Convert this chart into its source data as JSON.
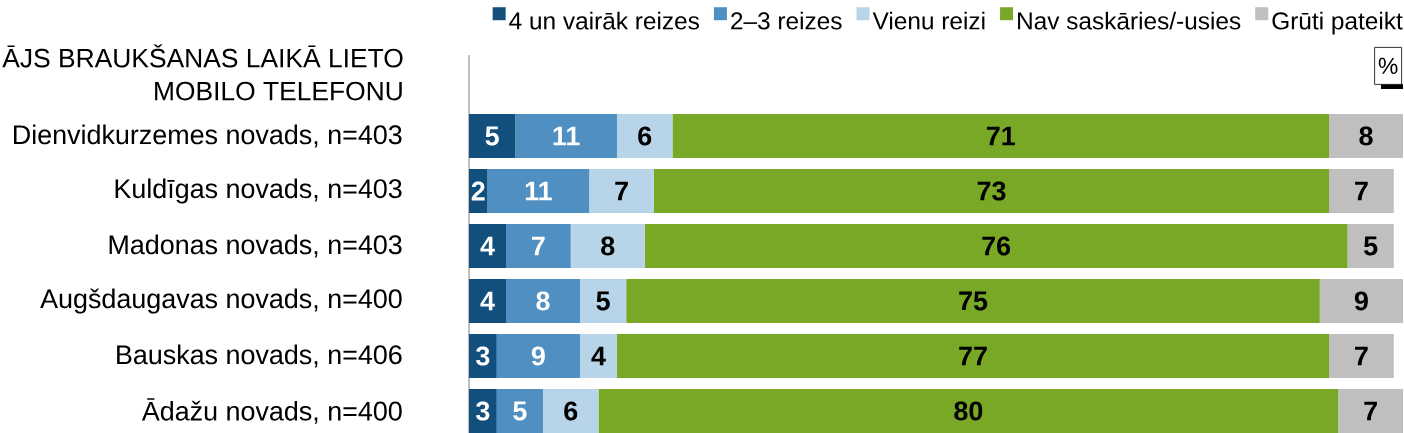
{
  "chart_data": {
    "type": "bar",
    "orientation": "horizontal",
    "stacked": true,
    "title": "ĀJS BRAUKŠANAS LAIKĀ LIETO MOBILO TELEFONU",
    "categories": [
      "Dienvidkurzemes novads, n=403",
      "Kuldīgas novads, n=403",
      "Madonas novads, n=403",
      "Augšdaugavas novads, n=400",
      "Bauskas novads, n=406",
      "Ādažu novads, n=400"
    ],
    "series": [
      {
        "name": "4 un vairāk reizes",
        "color": "#124f7c",
        "values": [
          5,
          2,
          4,
          4,
          3,
          3
        ]
      },
      {
        "name": "2–3 reizes",
        "color": "#4f8fc2",
        "values": [
          11,
          11,
          7,
          8,
          9,
          5
        ]
      },
      {
        "name": "Vienu reizi",
        "color": "#b8d4e8",
        "values": [
          6,
          7,
          8,
          5,
          4,
          6
        ]
      },
      {
        "name": "Nav saskāries/-usies",
        "color": "#78a825",
        "values": [
          71,
          73,
          76,
          75,
          77,
          80
        ]
      },
      {
        "name": "Grūti pateikt",
        "color": "#bfbfbf",
        "values": [
          8,
          7,
          5,
          9,
          7,
          7
        ]
      }
    ],
    "data_labels": true,
    "legend": "top",
    "tick_labels": "y",
    "annotations": [
      "%"
    ]
  }
}
